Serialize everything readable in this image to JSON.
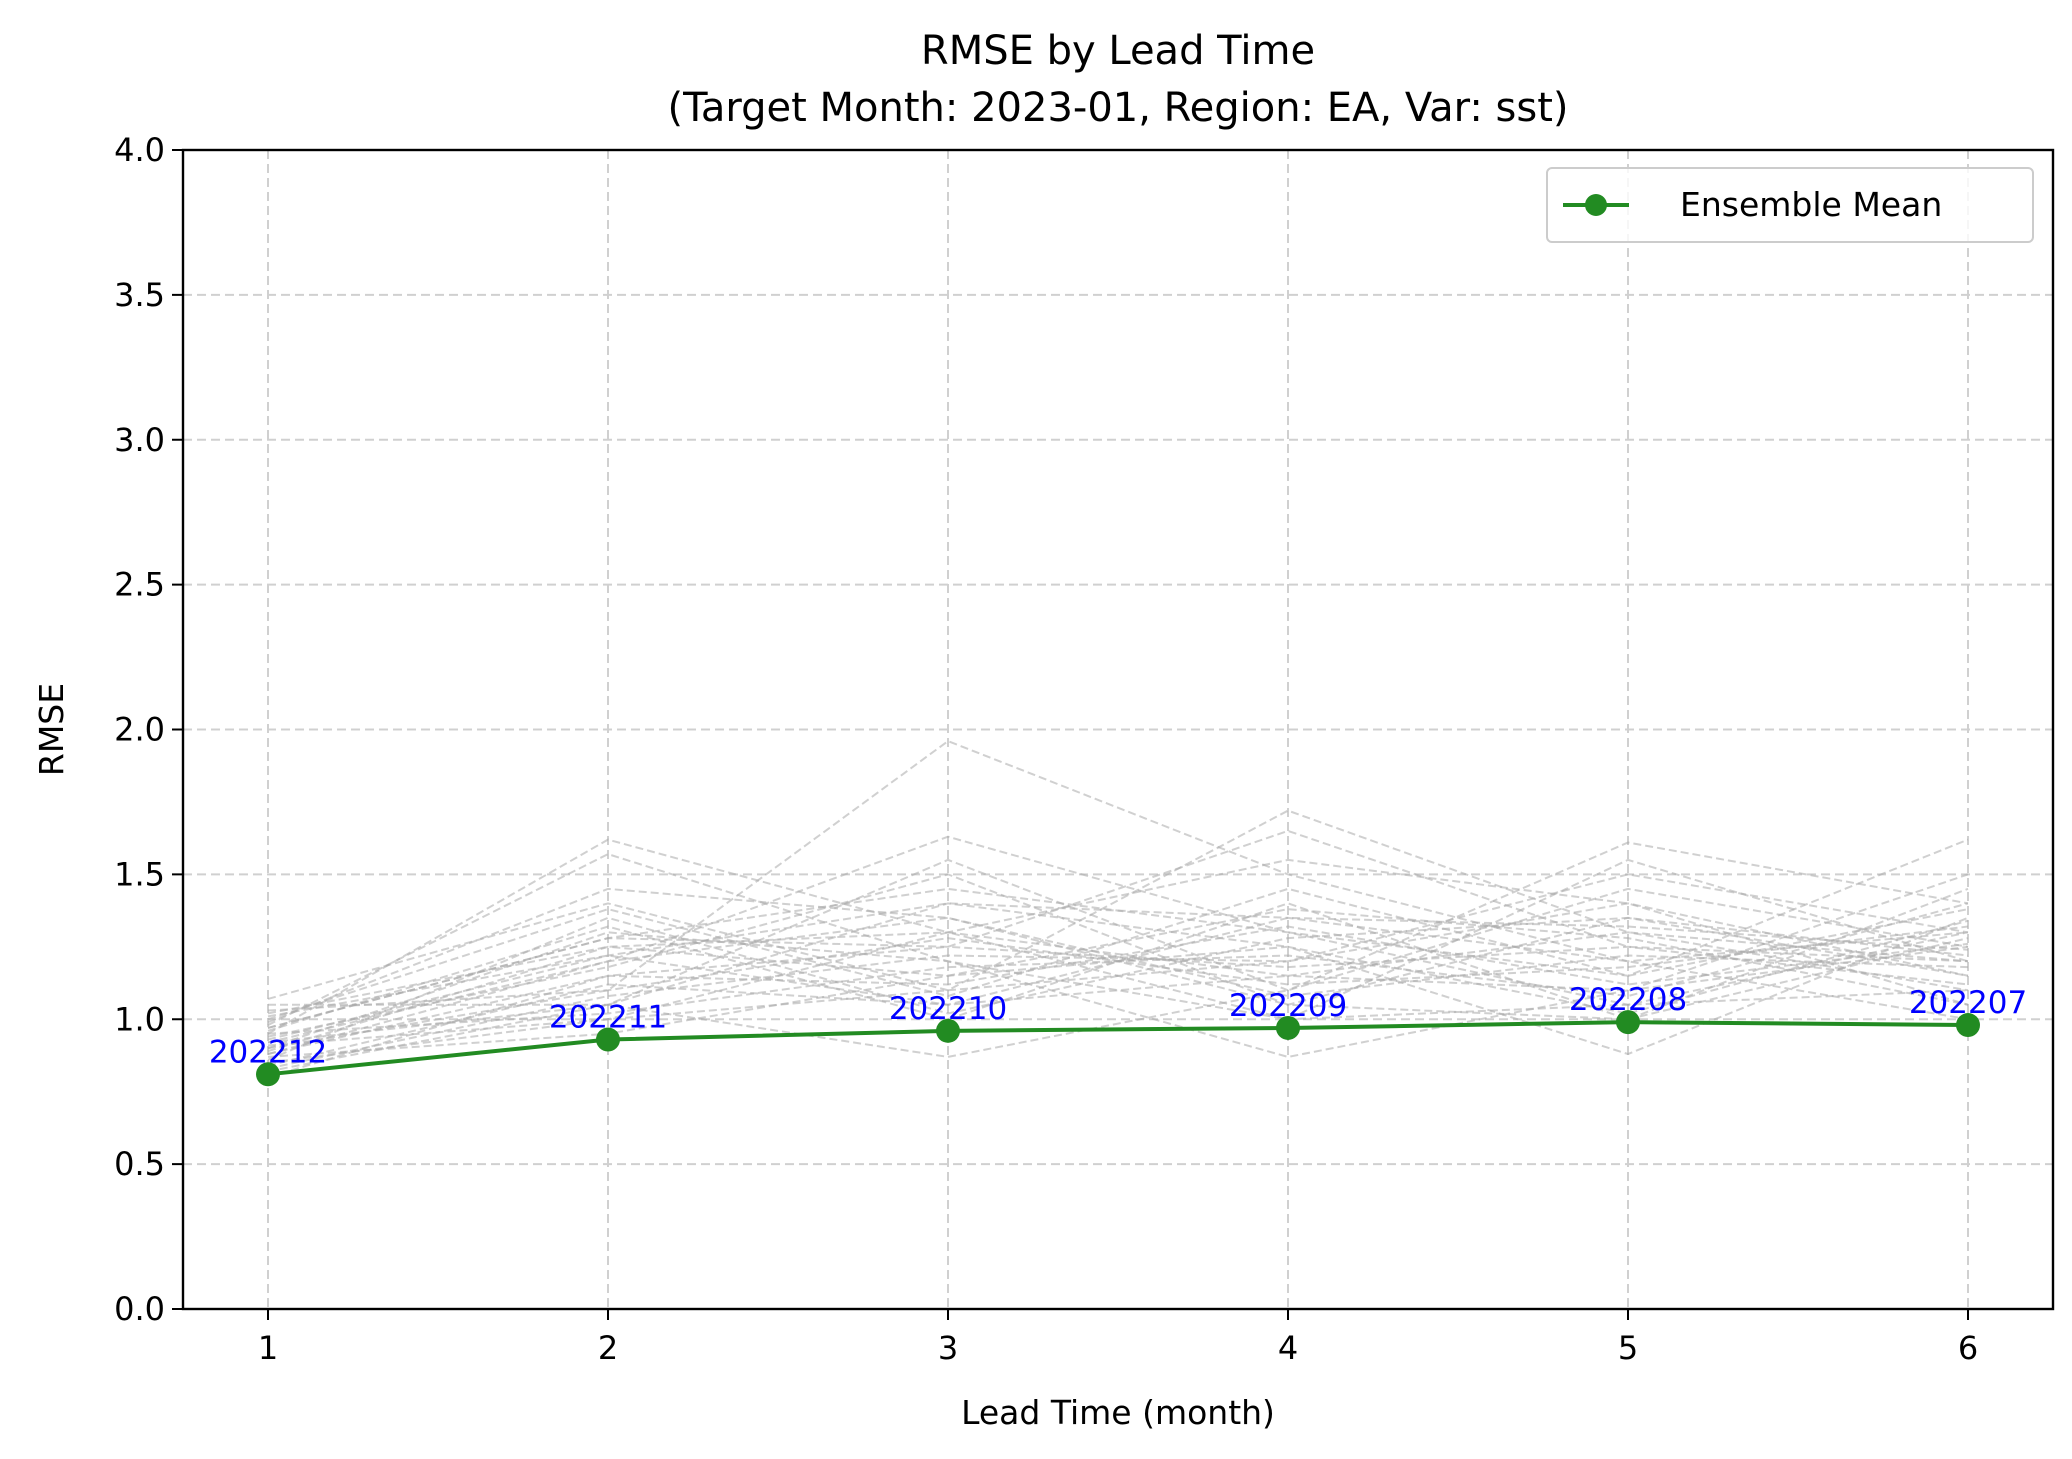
{
  "chart_data": {
    "type": "line",
    "title": "RMSE by Lead Time",
    "subtitle": "(Target Month: 2023-01, Region: EA, Var: sst)",
    "xlabel": "Lead Time (month)",
    "ylabel": "RMSE",
    "xlim": [
      0.75,
      6.25
    ],
    "ylim": [
      0,
      4.0
    ],
    "x": [
      1,
      2,
      3,
      4,
      5,
      6
    ],
    "x_ticks": [
      "1",
      "2",
      "3",
      "4",
      "5",
      "6"
    ],
    "y_ticks": [
      "0.0",
      "0.5",
      "1.0",
      "1.5",
      "2.0",
      "2.5",
      "3.0",
      "3.5",
      "4.0"
    ],
    "grid": true,
    "legend_position": "top-right",
    "series": [
      {
        "name": "Ensemble Mean",
        "color": "#228b22",
        "values": [
          0.81,
          0.93,
          0.96,
          0.97,
          0.99,
          0.98
        ]
      }
    ],
    "point_labels": [
      "202212",
      "202211",
      "202210",
      "202209",
      "202208",
      "202207"
    ],
    "point_label_color": "#0000ff",
    "member_color": "#a9a9a9",
    "members": [
      [
        0.95,
        1.62,
        1.3,
        1.15,
        1.1,
        1.25
      ],
      [
        0.9,
        1.1,
        1.96,
        1.5,
        1.2,
        1.3
      ],
      [
        0.98,
        1.57,
        1.2,
        1.0,
        1.05,
        1.1
      ],
      [
        1.07,
        1.4,
        1.1,
        1.72,
        1.3,
        1.2
      ],
      [
        0.88,
        1.2,
        1.63,
        1.3,
        1.15,
        1.62
      ],
      [
        0.92,
        1.05,
        1.55,
        1.1,
        1.61,
        1.4
      ],
      [
        1.02,
        1.25,
        1.3,
        1.55,
        1.4,
        1.05
      ],
      [
        0.85,
        1.0,
        1.1,
        1.2,
        1.5,
        1.3
      ],
      [
        0.96,
        1.32,
        1.0,
        1.4,
        1.0,
        1.45
      ],
      [
        0.8,
        1.15,
        1.25,
        1.65,
        1.25,
        1.2
      ],
      [
        0.99,
        1.45,
        1.35,
        1.05,
        1.35,
        1.15
      ],
      [
        0.87,
        0.95,
        1.15,
        1.25,
        0.88,
        1.35
      ],
      [
        0.93,
        1.22,
        1.4,
        1.35,
        1.2,
        1.0
      ],
      [
        1.05,
        1.05,
        0.87,
        1.1,
        1.45,
        1.25
      ],
      [
        0.9,
        1.3,
        1.2,
        0.87,
        1.1,
        1.5
      ],
      [
        0.84,
        1.12,
        1.05,
        1.15,
        1.3,
        1.1
      ],
      [
        0.97,
        1.28,
        1.45,
        1.3,
        1.05,
        1.3
      ],
      [
        0.91,
        1.0,
        1.3,
        1.0,
        1.55,
        1.2
      ],
      [
        1.0,
        1.38,
        1.08,
        1.45,
        1.15,
        1.38
      ],
      [
        0.83,
        1.08,
        1.22,
        1.2,
        1.4,
        1.15
      ],
      [
        0.94,
        1.18,
        1.5,
        1.05,
        1.0,
        1.28
      ],
      [
        0.89,
        1.25,
        1.15,
        1.38,
        1.28,
        1.05
      ],
      [
        1.03,
        1.1,
        1.28,
        1.12,
        1.18,
        1.32
      ],
      [
        0.86,
        1.35,
        1.02,
        1.28,
        1.35,
        1.22
      ],
      [
        0.95,
        1.02,
        1.18,
        1.22,
        1.08,
        1.4
      ],
      [
        0.92,
        1.2,
        1.35,
        1.08,
        1.22,
        1.18
      ],
      [
        0.88,
        1.15,
        1.12,
        1.32,
        1.12,
        1.26
      ],
      [
        0.97,
        1.28,
        1.25,
        1.18,
        1.25,
        1.12
      ],
      [
        0.82,
        1.05,
        1.4,
        1.25,
        1.02,
        1.34
      ],
      [
        1.01,
        1.22,
        1.05,
        1.35,
        1.32,
        1.24
      ]
    ]
  }
}
